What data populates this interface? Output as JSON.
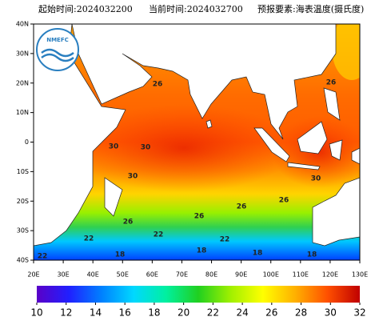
{
  "header": {
    "start": "起始时间:2024032200",
    "current": "当前时间:2024032700",
    "element": "预报要素:海表温度(摄氏度)"
  },
  "logo": {
    "text": "NMEFC"
  },
  "map": {
    "lat_labels": [
      "40N",
      "30N",
      "20N",
      "10N",
      "0",
      "10S",
      "20S",
      "30S",
      "40S"
    ],
    "lon_labels": [
      "20E",
      "30E",
      "40E",
      "50E",
      "60E",
      "70E",
      "80E",
      "90E",
      "100E",
      "110E",
      "120E",
      "130E"
    ],
    "contour_labels": [
      "26",
      "26",
      "30",
      "30",
      "30",
      "30",
      "26",
      "26",
      "26",
      "26",
      "22",
      "22",
      "22",
      "22",
      "18",
      "18",
      "18",
      "18"
    ]
  },
  "colorbar": {
    "ticks": [
      10,
      12,
      14,
      16,
      18,
      20,
      22,
      24,
      26,
      28,
      30,
      32
    ]
  }
}
